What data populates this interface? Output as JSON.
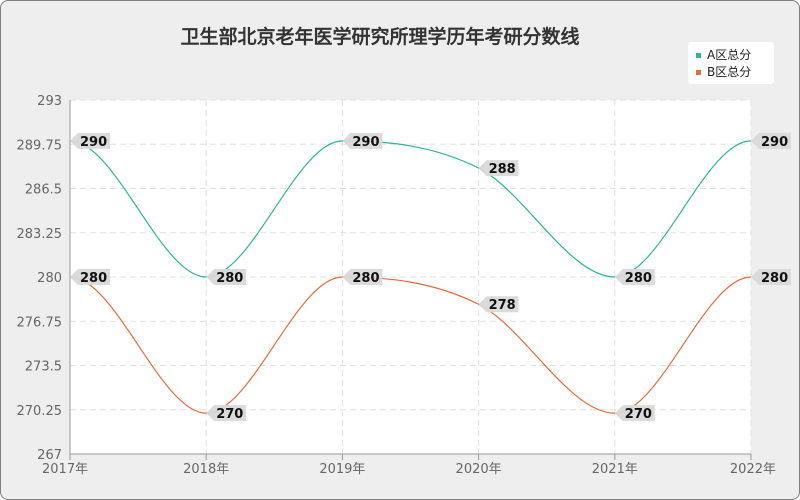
{
  "chart_data": {
    "type": "line",
    "title": "卫生部北京老年医学研究所理学历年考研分数线",
    "categories": [
      "2017年",
      "2018年",
      "2019年",
      "2020年",
      "2021年",
      "2022年"
    ],
    "series": [
      {
        "name": "A区总分",
        "values": [
          290,
          280,
          290,
          288,
          280,
          290
        ],
        "color": "#2bb592"
      },
      {
        "name": "B区总分",
        "values": [
          280,
          270,
          280,
          278,
          270,
          280
        ],
        "color": "#e06c3c"
      }
    ],
    "yticks": [
      "293",
      "289.75",
      "286.5",
      "283.25",
      "280",
      "276.75",
      "273.5",
      "270.25",
      "267"
    ],
    "ylim": [
      267,
      293
    ],
    "grid": true,
    "legend_position": "top-right"
  }
}
